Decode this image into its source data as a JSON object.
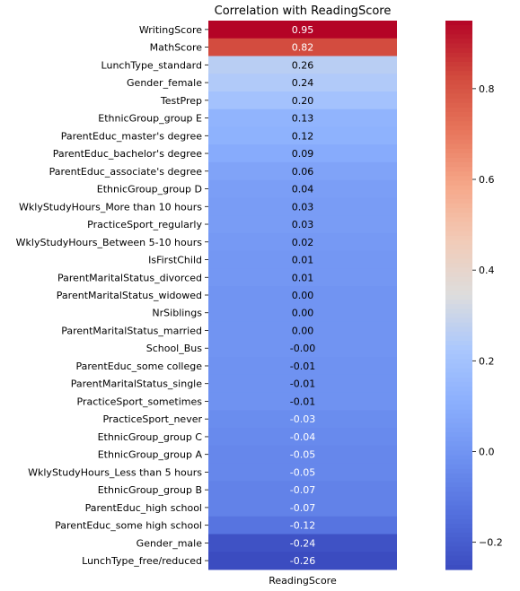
{
  "chart_data": {
    "type": "heatmap",
    "title": "Correlation with ReadingScore",
    "xlabel": "ReadingScore",
    "ylabel": "",
    "column": "ReadingScore",
    "categories": [
      "WritingScore",
      "MathScore",
      "LunchType_standard",
      "Gender_female",
      "TestPrep",
      "EthnicGroup_group E",
      "ParentEduc_master's degree",
      "ParentEduc_bachelor's degree",
      "ParentEduc_associate's degree",
      "EthnicGroup_group D",
      "WklyStudyHours_More than 10 hours",
      "PracticeSport_regularly",
      "WklyStudyHours_Between 5-10 hours",
      "IsFirstChild",
      "ParentMaritalStatus_divorced",
      "ParentMaritalStatus_widowed",
      "NrSiblings",
      "ParentMaritalStatus_married",
      "School_Bus",
      "ParentEduc_some college",
      "ParentMaritalStatus_single",
      "PracticeSport_sometimes",
      "PracticeSport_never",
      "EthnicGroup_group C",
      "EthnicGroup_group A",
      "WklyStudyHours_Less than 5 hours",
      "EthnicGroup_group B",
      "ParentEduc_high school",
      "ParentEduc_some high school",
      "Gender_male",
      "LunchType_free/reduced"
    ],
    "values": [
      0.95,
      0.82,
      0.26,
      0.24,
      0.2,
      0.13,
      0.12,
      0.09,
      0.06,
      0.04,
      0.03,
      0.03,
      0.02,
      0.01,
      0.01,
      0.0,
      0.0,
      0.0,
      -0.002,
      -0.01,
      -0.01,
      -0.01,
      -0.03,
      -0.04,
      -0.05,
      -0.05,
      -0.07,
      -0.07,
      -0.12,
      -0.24,
      -0.26
    ],
    "labels": [
      "0.95",
      "0.82",
      "0.26",
      "0.24",
      "0.20",
      "0.13",
      "0.12",
      "0.09",
      "0.06",
      "0.04",
      "0.03",
      "0.03",
      "0.02",
      "0.01",
      "0.01",
      "0.00",
      "0.00",
      "0.00",
      "-0.00",
      "-0.01",
      "-0.01",
      "-0.01",
      "-0.03",
      "-0.04",
      "-0.05",
      "-0.05",
      "-0.07",
      "-0.07",
      "-0.12",
      "-0.24",
      "-0.26"
    ],
    "colormap": "coolwarm",
    "colorbar": {
      "range": [
        -0.26,
        0.95
      ],
      "ticks": [
        -0.2,
        0.0,
        0.2,
        0.4,
        0.6,
        0.8
      ],
      "tick_labels": [
        "−0.2",
        "0.0",
        "0.2",
        "0.4",
        "0.6",
        "0.8"
      ]
    },
    "legend": "colorbar-right",
    "grid": false
  }
}
